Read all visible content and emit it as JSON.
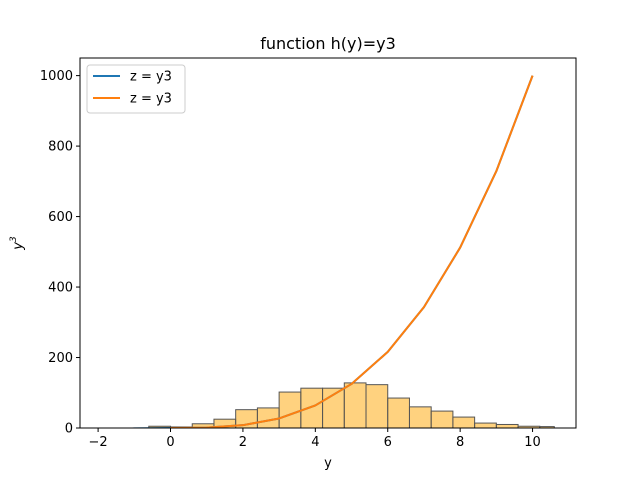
{
  "chart_data": {
    "type": "line",
    "title": "function  h(y)=y3",
    "xlabel": "y",
    "ylabel": "y",
    "ylabel_superscript": "3",
    "xlim": [
      -2.5,
      11.2
    ],
    "ylim": [
      0,
      1050
    ],
    "x_ticks": [
      -2,
      0,
      2,
      4,
      6,
      8,
      10
    ],
    "y_ticks": [
      0,
      200,
      400,
      600,
      800,
      1000
    ],
    "grid": false,
    "legend_position": "top-left",
    "series": [
      {
        "name": "z = y3",
        "color": "#1f77b4",
        "x": [
          -2,
          -1,
          0,
          1,
          2,
          3,
          4,
          5,
          6,
          7,
          8,
          9,
          10
        ],
        "y": [
          -8,
          -1,
          0,
          1,
          8,
          27,
          64,
          125,
          216,
          343,
          512,
          729,
          1000
        ]
      },
      {
        "name": "z = y3",
        "color": "#ff7f0e",
        "x": [
          0,
          1,
          2,
          3,
          4,
          5,
          6,
          7,
          8,
          9,
          10
        ],
        "y": [
          0,
          1,
          8,
          27,
          64,
          125,
          216,
          343,
          512,
          729,
          1000
        ]
      }
    ],
    "histogram": {
      "color": "#ffa500",
      "edge_color": "#555555",
      "bin_edges": [
        -0.6,
        0.0,
        0.6,
        1.2,
        1.8,
        2.4,
        3.0,
        3.6,
        4.2,
        4.8,
        5.4,
        6.0,
        6.6,
        7.2,
        7.8,
        8.4,
        9.0,
        9.6,
        10.2,
        10.6
      ],
      "counts": [
        5,
        3,
        12,
        25,
        52,
        57,
        102,
        113,
        113,
        128,
        123,
        85,
        60,
        48,
        31,
        14,
        10,
        5,
        4
      ]
    }
  }
}
